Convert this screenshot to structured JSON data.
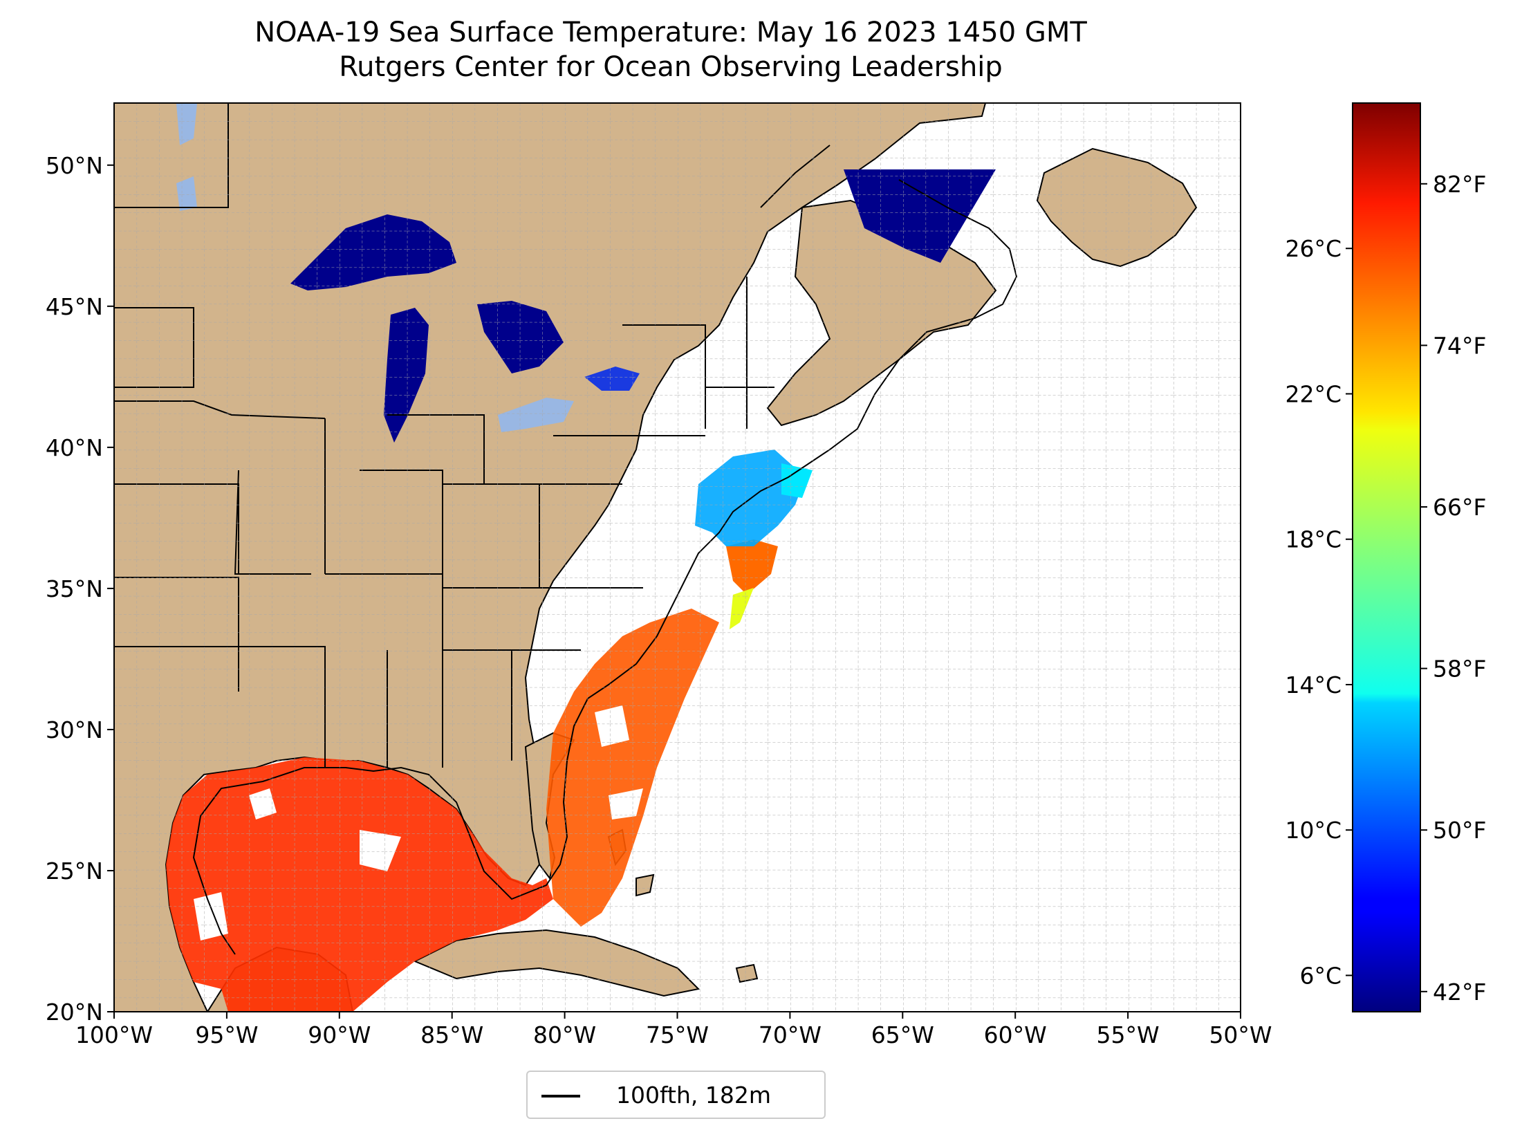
{
  "title": {
    "line1": "NOAA-19 Sea Surface Temperature: May 16 2023 1450 GMT",
    "line2": "Rutgers Center for Ocean Observing Leadership"
  },
  "map": {
    "lon_range": [
      -100,
      -50
    ],
    "lat_range": [
      20,
      52.2
    ],
    "lon_ticks": [
      {
        "value": -100,
        "label": "100°W"
      },
      {
        "value": -95,
        "label": "95°W"
      },
      {
        "value": -90,
        "label": "90°W"
      },
      {
        "value": -85,
        "label": "85°W"
      },
      {
        "value": -80,
        "label": "80°W"
      },
      {
        "value": -75,
        "label": "75°W"
      },
      {
        "value": -70,
        "label": "70°W"
      },
      {
        "value": -65,
        "label": "65°W"
      },
      {
        "value": -60,
        "label": "60°W"
      },
      {
        "value": -55,
        "label": "55°W"
      },
      {
        "value": -50,
        "label": "50°W"
      }
    ],
    "lat_ticks": [
      {
        "value": 20,
        "label": "20°N"
      },
      {
        "value": 25,
        "label": "25°N"
      },
      {
        "value": 30,
        "label": "30°N"
      },
      {
        "value": 35,
        "label": "35°N"
      },
      {
        "value": 40,
        "label": "40°N"
      },
      {
        "value": 45,
        "label": "45°N"
      },
      {
        "value": 50,
        "label": "50°N"
      }
    ],
    "gridlines": true,
    "land_color": "#d2b48c",
    "lake_color": "#99b7e3",
    "ocean_color": "#ffffff"
  },
  "colorbar": {
    "colormap": "jet",
    "range_c": [
      5,
      30
    ],
    "celsius_ticks": [
      {
        "value": 6,
        "label": "6°C"
      },
      {
        "value": 10,
        "label": "10°C"
      },
      {
        "value": 14,
        "label": "14°C"
      },
      {
        "value": 18,
        "label": "18°C"
      },
      {
        "value": 22,
        "label": "22°C"
      },
      {
        "value": 26,
        "label": "26°C"
      }
    ],
    "fahrenheit_ticks": [
      {
        "value": 42,
        "label": "42°F"
      },
      {
        "value": 50,
        "label": "50°F"
      },
      {
        "value": 58,
        "label": "58°F"
      },
      {
        "value": 66,
        "label": "66°F"
      },
      {
        "value": 74,
        "label": "74°F"
      },
      {
        "value": 82,
        "label": "82°F"
      }
    ]
  },
  "legend": {
    "entries": [
      {
        "label": "100fth, 182m",
        "color": "#000000"
      }
    ]
  }
}
